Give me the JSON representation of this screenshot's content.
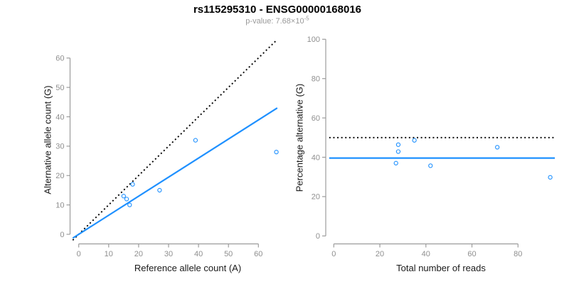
{
  "header": {
    "title": "rs115295310 - ENSG00000168016",
    "subtitle_prefix": "p-value: 7.68×10",
    "subtitle_exponent": "-5"
  },
  "colors": {
    "accent_blue": "#1E90FF",
    "line_black": "#000000",
    "axis_gray": "#9c9c9c",
    "tick_label_gray": "#8f8f8f",
    "axis_title_color": "#1a1a1a",
    "subtitle_gray": "#9a9a9a",
    "background": "#ffffff"
  },
  "chart_data": [
    {
      "type": "scatter",
      "panel": "left",
      "xlabel": "Reference allele count (A)",
      "ylabel": "Alternative allele count (G)",
      "x_ticks": [
        0,
        10,
        20,
        30,
        40,
        50,
        60
      ],
      "y_ticks": [
        0,
        10,
        20,
        30,
        40,
        50,
        60
      ],
      "xlim": [
        -2,
        66.5
      ],
      "ylim": [
        -2,
        66.5
      ],
      "grid": false,
      "legend": "none",
      "points": [
        [
          15,
          13
        ],
        [
          16,
          12
        ],
        [
          17,
          10
        ],
        [
          18,
          17
        ],
        [
          27,
          15
        ],
        [
          39,
          32
        ],
        [
          66,
          28
        ]
      ],
      "lines": [
        {
          "name": "identity-line",
          "style": "dotted",
          "color": "black",
          "x1": -2,
          "y1": -2,
          "x2": 66.3,
          "y2": 66.3
        },
        {
          "name": "fit-line",
          "style": "solid",
          "color": "blue",
          "x1": -2,
          "y1": -1.3,
          "x2": 66.3,
          "y2": 43
        }
      ]
    },
    {
      "type": "scatter",
      "panel": "right",
      "xlabel": "Total number of reads",
      "ylabel": "Percentage alternative (G)",
      "x_ticks": [
        0,
        20,
        40,
        60,
        80
      ],
      "y_ticks": [
        0,
        20,
        40,
        60,
        80,
        100
      ],
      "xlim": [
        -2,
        96
      ],
      "ylim": [
        0,
        100
      ],
      "grid": false,
      "legend": "none",
      "points": [
        [
          28,
          46.4
        ],
        [
          28,
          42.9
        ],
        [
          27,
          37.0
        ],
        [
          35,
          48.6
        ],
        [
          42,
          35.7
        ],
        [
          71,
          45.1
        ],
        [
          94,
          29.8
        ]
      ],
      "lines": [
        {
          "name": "expected-heterozygous-line",
          "style": "dotted",
          "color": "black",
          "x1": -2,
          "y1": 50,
          "x2": 96,
          "y2": 50
        },
        {
          "name": "mean-percentage-line",
          "style": "solid",
          "color": "blue",
          "x1": -2,
          "y1": 39.6,
          "x2": 96,
          "y2": 39.6
        }
      ]
    }
  ]
}
